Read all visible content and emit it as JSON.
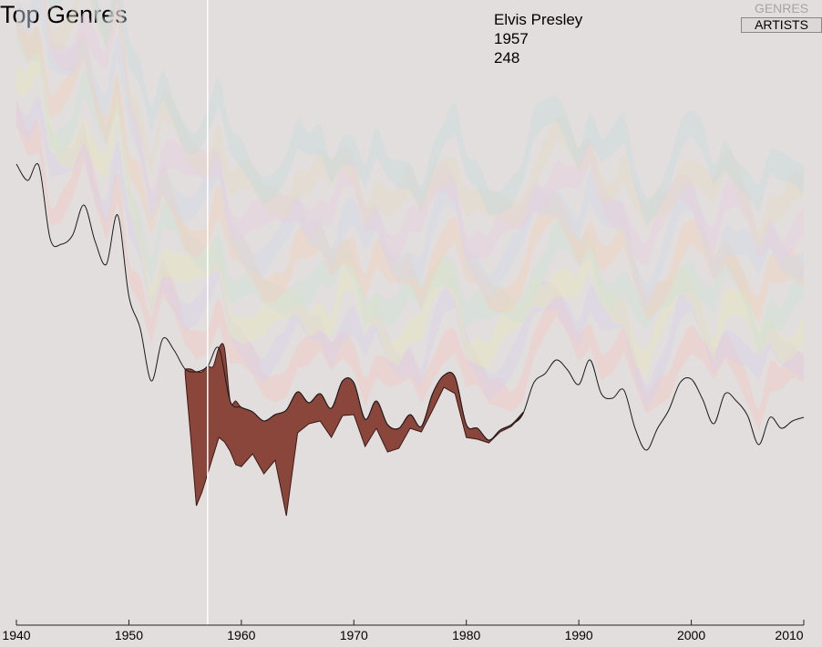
{
  "title": "Top Genres",
  "tooltip": {
    "artist": "Elvis Presley",
    "year": "1957",
    "value": "248"
  },
  "toggle": {
    "genres_label": "GENRES",
    "artists_label": "ARTISTS",
    "active": "ARTISTS"
  },
  "colors": {
    "background": "#e2dedd",
    "highlight_fill": "#8b463c",
    "highlight_stroke": "#3a1a14",
    "outline": "#1a1a1a",
    "cursor": "#ffffff"
  },
  "chart_data": {
    "type": "area",
    "subtype": "streamgraph",
    "xlim": [
      1940,
      2010
    ],
    "x_ticks": [
      1940,
      1950,
      1960,
      1970,
      1980,
      1990,
      2000,
      2010
    ],
    "cursor_year": 1957,
    "highlight_series": "Elvis Presley",
    "highlight_band": [
      {
        "x": 1955.0,
        "v": 0
      },
      {
        "x": 1955.5,
        "v": 70
      },
      {
        "x": 1956.0,
        "v": 150
      },
      {
        "x": 1956.5,
        "v": 130
      },
      {
        "x": 1957.0,
        "v": 248
      },
      {
        "x": 1957.5,
        "v": 170
      },
      {
        "x": 1958.0,
        "v": 130
      },
      {
        "x": 1958.5,
        "v": 60
      },
      {
        "x": 1959.0,
        "v": 50
      },
      {
        "x": 1959.5,
        "v": 70
      },
      {
        "x": 1960.0,
        "v": 65
      },
      {
        "x": 1961.0,
        "v": 60
      },
      {
        "x": 1962.0,
        "v": 55
      },
      {
        "x": 1963.0,
        "v": 60
      },
      {
        "x": 1964.0,
        "v": 50
      },
      {
        "x": 1965.0,
        "v": 30
      },
      {
        "x": 1966.0,
        "v": 40
      },
      {
        "x": 1967.0,
        "v": 30
      },
      {
        "x": 1968.0,
        "v": 25
      },
      {
        "x": 1969.0,
        "v": 40
      },
      {
        "x": 1970.0,
        "v": 45
      },
      {
        "x": 1971.0,
        "v": 30
      },
      {
        "x": 1972.0,
        "v": 20
      },
      {
        "x": 1973.0,
        "v": 25
      },
      {
        "x": 1974.0,
        "v": 30
      },
      {
        "x": 1975.0,
        "v": 20
      },
      {
        "x": 1976.0,
        "v": 15
      },
      {
        "x": 1977.0,
        "v": 25
      },
      {
        "x": 1978.0,
        "v": 40
      },
      {
        "x": 1979.0,
        "v": 25
      },
      {
        "x": 1980.0,
        "v": 10
      },
      {
        "x": 1981.0,
        "v": 10
      },
      {
        "x": 1982.0,
        "v": 5
      },
      {
        "x": 1983.0,
        "v": 5
      },
      {
        "x": 1984.0,
        "v": 5
      },
      {
        "x": 1985.0,
        "v": 0
      }
    ]
  }
}
